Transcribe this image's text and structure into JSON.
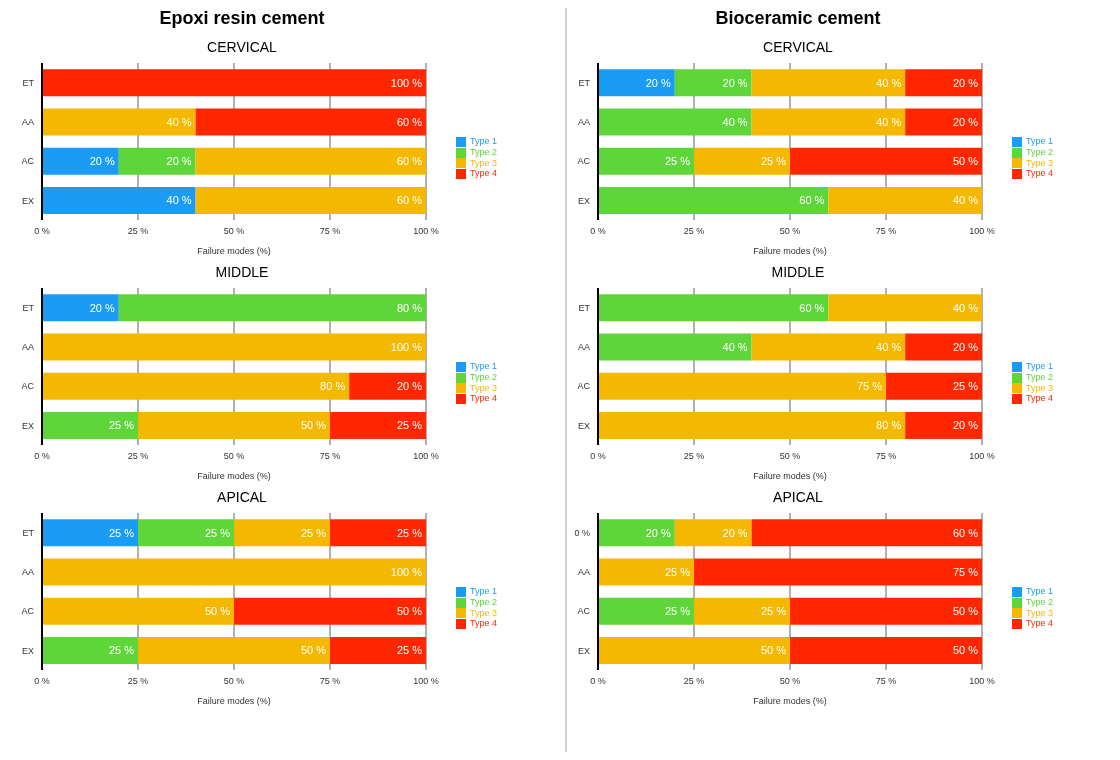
{
  "chart_data": [
    {
      "type": "bar",
      "orientation": "horizontal",
      "stacked": true,
      "title": "Epoxi resin cement",
      "subtitle": "CERVICAL",
      "xlabel": "Failure modes (%)",
      "categories": [
        "ET",
        "AA",
        "AC",
        "EX"
      ],
      "xlim": [
        0,
        100
      ],
      "xticks": [
        {
          "value": 0,
          "label": "0 %"
        },
        {
          "value": 25,
          "label": "25 %"
        },
        {
          "value": 50,
          "label": "50 %"
        },
        {
          "value": 75,
          "label": "75 %"
        },
        {
          "value": 100,
          "label": "100 %"
        }
      ],
      "grid": "x",
      "legend": "right",
      "series": [
        {
          "name": "Type 1",
          "color": "#1a9cf5",
          "values": [
            null,
            null,
            20,
            40
          ],
          "value_labels": [
            null,
            null,
            "20 %",
            "40 %"
          ]
        },
        {
          "name": "Type 2",
          "color": "#5ed63a",
          "values": [
            null,
            null,
            20,
            null
          ],
          "value_labels": [
            null,
            null,
            "20 %",
            null
          ]
        },
        {
          "name": "Type 3",
          "color": "#f5b800",
          "values": [
            null,
            40,
            60,
            60
          ],
          "value_labels": [
            null,
            "40 %",
            "60 %",
            "60 %"
          ]
        },
        {
          "name": "Type 4",
          "color": "#ff2600",
          "values": [
            100,
            60,
            null,
            null
          ],
          "value_labels": [
            "100 %",
            "60 %",
            null,
            null
          ]
        }
      ]
    },
    {
      "type": "bar",
      "orientation": "horizontal",
      "stacked": true,
      "title": "Bioceramic cement",
      "subtitle": "CERVICAL",
      "xlabel": "Failure modes (%)",
      "categories": [
        "ET",
        "AA",
        "AC",
        "EX"
      ],
      "xlim": [
        0,
        100
      ],
      "xticks": [
        {
          "value": 0,
          "label": "0 %"
        },
        {
          "value": 25,
          "label": "25 %"
        },
        {
          "value": 50,
          "label": "50 %"
        },
        {
          "value": 75,
          "label": "75 %"
        },
        {
          "value": 100,
          "label": "100 %"
        }
      ],
      "grid": "x",
      "legend": "right",
      "series": [
        {
          "name": "Type 1",
          "color": "#1a9cf5",
          "values": [
            20,
            null,
            null,
            null
          ],
          "value_labels": [
            "20 %",
            null,
            null,
            null
          ]
        },
        {
          "name": "Type 2",
          "color": "#5ed63a",
          "values": [
            20,
            40,
            25,
            60
          ],
          "value_labels": [
            "20 %",
            "40 %",
            "25 %",
            "60 %"
          ]
        },
        {
          "name": "Type 3",
          "color": "#f5b800",
          "values": [
            40,
            40,
            25,
            40
          ],
          "value_labels": [
            "40 %",
            "40 %",
            "25 %",
            "40 %"
          ]
        },
        {
          "name": "Type 4",
          "color": "#ff2600",
          "values": [
            20,
            20,
            50,
            null
          ],
          "value_labels": [
            "20 %",
            "20 %",
            "50 %",
            null
          ]
        }
      ]
    },
    {
      "type": "bar",
      "orientation": "horizontal",
      "stacked": true,
      "title": "MIDDLE",
      "xlabel": "Failure modes (%)",
      "categories": [
        "ET",
        "AA",
        "AC",
        "EX"
      ],
      "xlim": [
        0,
        100
      ],
      "xticks": [
        {
          "value": 0,
          "label": "0 %"
        },
        {
          "value": 25,
          "label": "25 %"
        },
        {
          "value": 50,
          "label": "50 %"
        },
        {
          "value": 75,
          "label": "75 %"
        },
        {
          "value": 100,
          "label": "100 %"
        }
      ],
      "grid": "x",
      "legend": "right",
      "series": [
        {
          "name": "Type 1",
          "color": "#1a9cf5",
          "values": [
            20,
            null,
            null,
            null
          ],
          "value_labels": [
            "20 %",
            null,
            null,
            null
          ]
        },
        {
          "name": "Type 2",
          "color": "#5ed63a",
          "values": [
            80,
            null,
            null,
            25
          ],
          "value_labels": [
            "80 %",
            null,
            null,
            "25 %"
          ]
        },
        {
          "name": "Type 3",
          "color": "#f5b800",
          "values": [
            null,
            100,
            80,
            50
          ],
          "value_labels": [
            null,
            "100 %",
            "80 %",
            "50 %"
          ]
        },
        {
          "name": "Type 4",
          "color": "#ff2600",
          "values": [
            null,
            null,
            20,
            25
          ],
          "value_labels": [
            null,
            null,
            "20 %",
            "25 %"
          ]
        }
      ]
    },
    {
      "type": "bar",
      "orientation": "horizontal",
      "stacked": true,
      "title": "MIDDLE",
      "xlabel": "Failure modes (%)",
      "categories": [
        "ET",
        "AA",
        "AC",
        "EX"
      ],
      "xlim": [
        0,
        100
      ],
      "xticks": [
        {
          "value": 0,
          "label": "0 %"
        },
        {
          "value": 25,
          "label": "25 %"
        },
        {
          "value": 50,
          "label": "50 %"
        },
        {
          "value": 75,
          "label": "75 %"
        },
        {
          "value": 100,
          "label": "100 %"
        }
      ],
      "grid": "x",
      "legend": "right",
      "series": [
        {
          "name": "Type 1",
          "color": "#1a9cf5",
          "values": [
            null,
            null,
            null,
            null
          ],
          "value_labels": [
            null,
            null,
            null,
            null
          ]
        },
        {
          "name": "Type 2",
          "color": "#5ed63a",
          "values": [
            60,
            40,
            null,
            null
          ],
          "value_labels": [
            "60 %",
            "40 %",
            null,
            null
          ]
        },
        {
          "name": "Type 3",
          "color": "#f5b800",
          "values": [
            40,
            40,
            75,
            80
          ],
          "value_labels": [
            "40 %",
            "40 %",
            "75 %",
            "80 %"
          ]
        },
        {
          "name": "Type 4",
          "color": "#ff2600",
          "values": [
            null,
            20,
            25,
            20
          ],
          "value_labels": [
            null,
            "20 %",
            "25 %",
            "20 %"
          ]
        }
      ]
    },
    {
      "type": "bar",
      "orientation": "horizontal",
      "stacked": true,
      "title": "APICAL",
      "xlabel": "Failure modes (%)",
      "categories": [
        "ET",
        "AA",
        "AC",
        "EX"
      ],
      "xlim": [
        0,
        100
      ],
      "xticks": [
        {
          "value": 0,
          "label": "0 %"
        },
        {
          "value": 25,
          "label": "25 %"
        },
        {
          "value": 50,
          "label": "50 %"
        },
        {
          "value": 75,
          "label": "75 %"
        },
        {
          "value": 100,
          "label": "100 %"
        }
      ],
      "grid": "x",
      "legend": "right",
      "series": [
        {
          "name": "Type 1",
          "color": "#1a9cf5",
          "values": [
            25,
            null,
            null,
            null
          ],
          "value_labels": [
            "25 %",
            null,
            null,
            null
          ]
        },
        {
          "name": "Type 2",
          "color": "#5ed63a",
          "values": [
            25,
            null,
            null,
            25
          ],
          "value_labels": [
            "25 %",
            null,
            null,
            "25 %"
          ]
        },
        {
          "name": "Type 3",
          "color": "#f5b800",
          "values": [
            25,
            100,
            50,
            50
          ],
          "value_labels": [
            "25 %",
            "100 %",
            "50 %",
            "50 %"
          ]
        },
        {
          "name": "Type 4",
          "color": "#ff2600",
          "values": [
            25,
            null,
            50,
            25
          ],
          "value_labels": [
            "25 %",
            null,
            "50 %",
            "25 %"
          ]
        }
      ]
    },
    {
      "type": "bar",
      "orientation": "horizontal",
      "stacked": true,
      "title": "APICAL",
      "xlabel": "Failure modes (%)",
      "categories": [
        "0 %",
        "AA",
        "AC",
        "EX"
      ],
      "xlim": [
        0,
        100
      ],
      "xticks": [
        {
          "value": 0,
          "label": "0 %"
        },
        {
          "value": 25,
          "label": "25 %"
        },
        {
          "value": 50,
          "label": "50 %"
        },
        {
          "value": 75,
          "label": "75 %"
        },
        {
          "value": 100,
          "label": "100 %"
        }
      ],
      "grid": "x",
      "legend": "right",
      "series": [
        {
          "name": "Type 1",
          "color": "#1a9cf5",
          "values": [
            null,
            null,
            null,
            null
          ],
          "value_labels": [
            null,
            null,
            null,
            null
          ]
        },
        {
          "name": "Type 2",
          "color": "#5ed63a",
          "values": [
            20,
            null,
            25,
            null
          ],
          "value_labels": [
            "20 %",
            null,
            "25 %",
            null
          ]
        },
        {
          "name": "Type 3",
          "color": "#f5b800",
          "values": [
            20,
            25,
            25,
            50
          ],
          "value_labels": [
            "20 %",
            "25 %",
            "25 %",
            "50 %"
          ]
        },
        {
          "name": "Type 4",
          "color": "#ff2600",
          "values": [
            60,
            75,
            50,
            50
          ],
          "value_labels": [
            "60 %",
            "75 %",
            "50 %",
            "50 %"
          ]
        }
      ]
    }
  ]
}
